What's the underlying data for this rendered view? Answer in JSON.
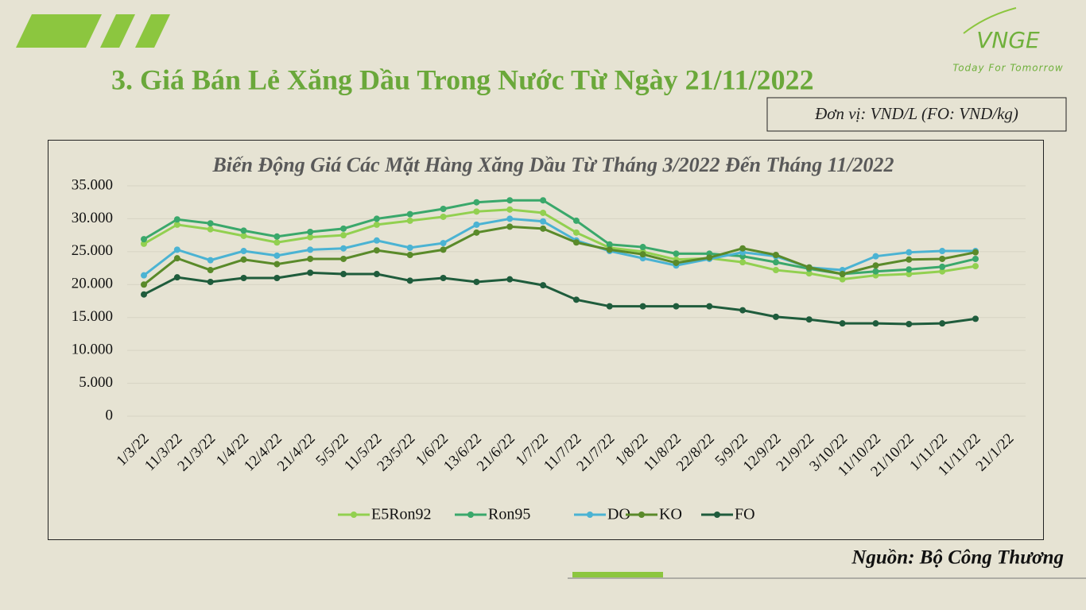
{
  "logo": {
    "text": "VNGE",
    "tagline": "Today For Tomorrow"
  },
  "heading": "3. Giá Bán Lẻ Xăng Dầu Trong Nước Từ Ngày 21/11/2022",
  "unit": "Đơn vị: VND/L (FO: VND/kg)",
  "source": "Nguồn: Bộ Công Thương",
  "chart_data": {
    "type": "line",
    "title": "Biến Động Giá Các Mặt Hàng Xăng Dầu Từ Tháng 3/2022 Đến Tháng 11/2022",
    "categories": [
      "1/3/22",
      "11/3/22",
      "21/3/22",
      "1/4/22",
      "12/4/22",
      "21/4/22",
      "5/5/22",
      "11/5/22",
      "23/5/22",
      "1/6/22",
      "13/6/22",
      "21/6/22",
      "1/7/22",
      "11/7/22",
      "21/7/22",
      "1/8/22",
      "11/8/22",
      "22/8/22",
      "5/9/22",
      "12/9/22",
      "21/9/22",
      "3/10/22",
      "11/10/22",
      "21/10/22",
      "1/11/22",
      "11/11/22",
      "21/1/22"
    ],
    "ylim": [
      0,
      35000
    ],
    "yticks": [
      0,
      {
        "value": 5000,
        "label": "5.000"
      },
      {
        "value": 10000,
        "label": "10.000"
      },
      {
        "value": 15000,
        "label": "15.000"
      },
      {
        "value": 20000,
        "label": "20.000"
      },
      {
        "value": 25000,
        "label": "25.000"
      },
      {
        "value": 30000,
        "label": "30.000"
      },
      {
        "value": 35000,
        "label": "35.000"
      }
    ],
    "grid": true,
    "legend": "bottom",
    "series": [
      {
        "name": "E5Ron92",
        "color": "#92d050",
        "values": [
          26200,
          29100,
          28400,
          27400,
          26400,
          27200,
          27500,
          29100,
          29700,
          30300,
          31100,
          31400,
          30900,
          27900,
          25600,
          25000,
          23800,
          24000,
          23400,
          22200,
          21700,
          20800,
          21400,
          21600,
          22000,
          22800,
          null
        ]
      },
      {
        "name": "Ron95",
        "color": "#3aa86b",
        "values": [
          26900,
          29900,
          29300,
          28200,
          27300,
          28000,
          28500,
          30000,
          30700,
          31500,
          32500,
          32800,
          32800,
          29700,
          26100,
          25700,
          24700,
          24700,
          24300,
          23400,
          22400,
          21600,
          22000,
          22300,
          22700,
          23900,
          null
        ]
      },
      {
        "name": "DO",
        "color": "#4bb3d3",
        "values": [
          21400,
          25300,
          23700,
          25100,
          24400,
          25300,
          25500,
          26700,
          25600,
          26300,
          29100,
          30000,
          29600,
          26700,
          25100,
          24000,
          22900,
          23900,
          24900,
          24300,
          22600,
          22200,
          24300,
          24900,
          25100,
          25100,
          null
        ]
      },
      {
        "name": "KO",
        "color": "#5a8a2a",
        "values": [
          20000,
          24000,
          22200,
          23800,
          23100,
          23900,
          23900,
          25200,
          24500,
          25300,
          27900,
          28800,
          28500,
          26400,
          25300,
          24600,
          23300,
          24100,
          25500,
          24500,
          22600,
          21600,
          22900,
          23800,
          23900,
          24900,
          null
        ]
      },
      {
        "name": "FO",
        "color": "#1f5c3c",
        "values": [
          18500,
          21100,
          20400,
          21000,
          21000,
          21800,
          21600,
          21600,
          20600,
          21000,
          20400,
          20800,
          19900,
          17700,
          16700,
          16700,
          16700,
          16700,
          16100,
          15100,
          14700,
          14100,
          14100,
          14000,
          14100,
          14800,
          null
        ]
      }
    ]
  }
}
